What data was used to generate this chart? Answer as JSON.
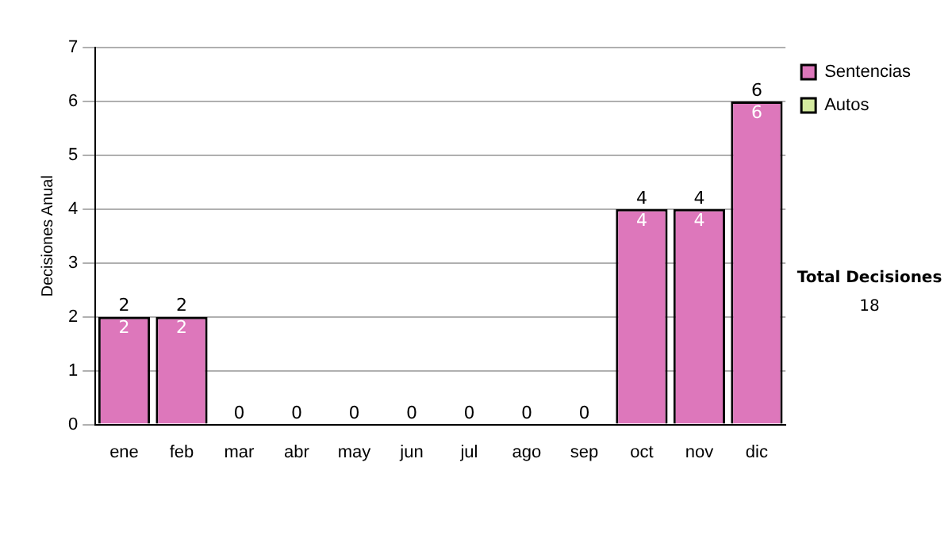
{
  "chart_data": {
    "type": "bar",
    "stacked": true,
    "ylabel": "Decisiones Anual",
    "categories": [
      "ene",
      "feb",
      "mar",
      "abr",
      "may",
      "jun",
      "jul",
      "ago",
      "sep",
      "oct",
      "nov",
      "dic"
    ],
    "series": [
      {
        "name": "Sentencias",
        "color": "#dd77bb",
        "values": [
          2,
          2,
          0,
          0,
          0,
          0,
          0,
          0,
          0,
          4,
          4,
          6
        ],
        "value_labels": [
          "2",
          "2",
          null,
          null,
          null,
          null,
          null,
          null,
          null,
          "4",
          "4",
          "6"
        ]
      },
      {
        "name": "Autos",
        "color": "#d4eaa0",
        "values": [
          0,
          0,
          0,
          0,
          0,
          0,
          0,
          0,
          0,
          0,
          0,
          0
        ]
      }
    ],
    "totals": [
      "2",
      "2",
      "0",
      "0",
      "0",
      "0",
      "0",
      "0",
      "0",
      "4",
      "4",
      "6"
    ],
    "ylim": [
      0,
      7
    ],
    "yticks": [
      0,
      1,
      2,
      3,
      4,
      5,
      6,
      7
    ],
    "grid": "y",
    "legend": "right",
    "annotations": [
      "Total Decisiones",
      "18"
    ]
  }
}
